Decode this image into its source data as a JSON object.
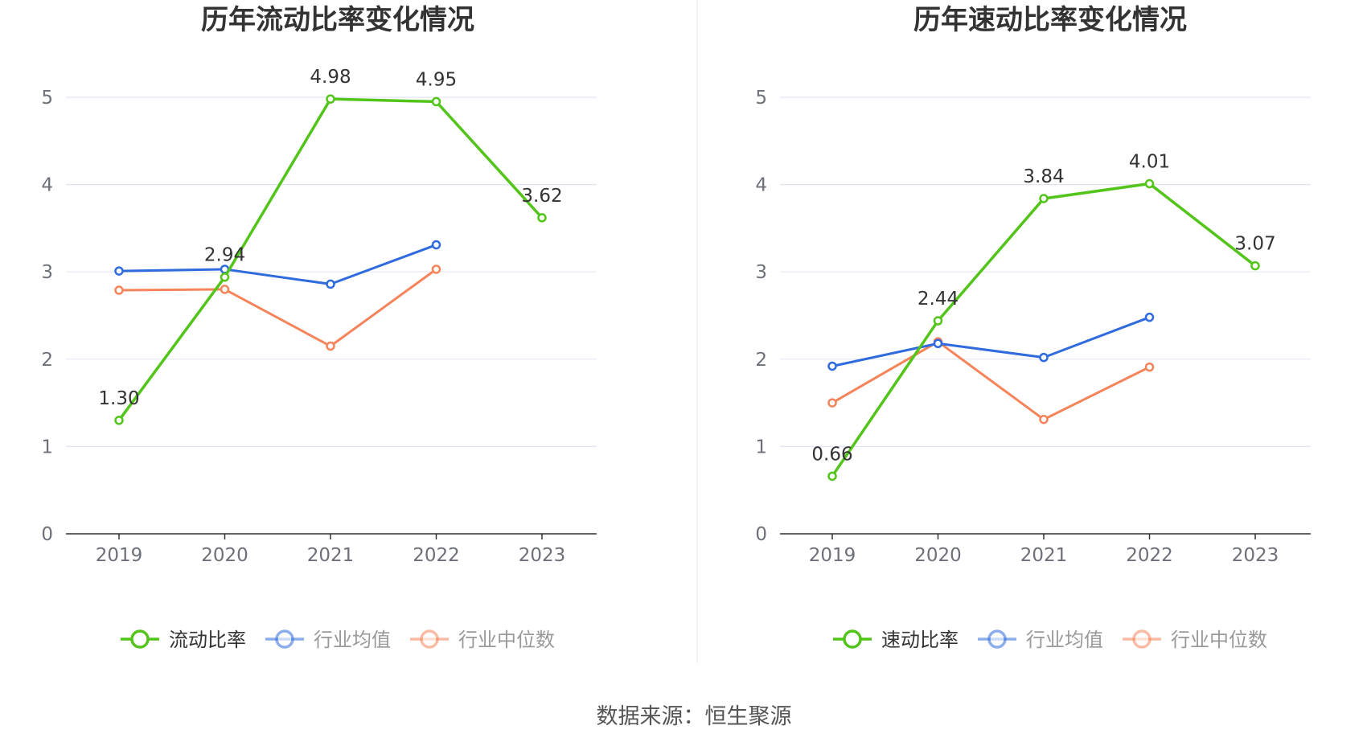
{
  "chart_data": [
    {
      "type": "line",
      "title": "历年流动比率变化情况",
      "categories": [
        "2019",
        "2020",
        "2021",
        "2022",
        "2023"
      ],
      "ylim": [
        0,
        5
      ],
      "yticks": [
        0,
        1,
        2,
        3,
        4,
        5
      ],
      "grid": true,
      "legend_position": "bottom",
      "series": [
        {
          "name": "流动比率",
          "color": "#52c41a",
          "values": [
            1.3,
            2.94,
            4.98,
            4.95,
            3.62
          ],
          "labels": [
            "1.30",
            "2.94",
            "4.98",
            "4.95",
            "3.62"
          ]
        },
        {
          "name": "行业均值",
          "color": "#2f6bdc",
          "values": [
            3.01,
            3.03,
            2.86,
            3.31,
            null
          ]
        },
        {
          "name": "行业中位数",
          "color": "#f5845b",
          "values": [
            2.79,
            2.8,
            2.15,
            3.03,
            null
          ]
        }
      ]
    },
    {
      "type": "line",
      "title": "历年速动比率变化情况",
      "categories": [
        "2019",
        "2020",
        "2021",
        "2022",
        "2023"
      ],
      "ylim": [
        0,
        5
      ],
      "yticks": [
        0,
        1,
        2,
        3,
        4,
        5
      ],
      "grid": true,
      "legend_position": "bottom",
      "series": [
        {
          "name": "速动比率",
          "color": "#52c41a",
          "values": [
            0.66,
            2.44,
            3.84,
            4.01,
            3.07
          ],
          "labels": [
            "0.66",
            "2.44",
            "3.84",
            "4.01",
            "3.07"
          ]
        },
        {
          "name": "行业均值",
          "color": "#2f6bdc",
          "values": [
            1.92,
            2.18,
            2.02,
            2.48,
            null
          ]
        },
        {
          "name": "行业中位数",
          "color": "#f5845b",
          "values": [
            1.5,
            2.2,
            1.31,
            1.91,
            null
          ]
        }
      ]
    }
  ],
  "footer": {
    "source": "数据来源：恒生聚源"
  },
  "colors": {
    "grid": "#e0e6f1",
    "axis": "#333333",
    "divider": "#eeeeee",
    "legend_inactive_text": "#999999",
    "legend_active_text": "#333333"
  }
}
